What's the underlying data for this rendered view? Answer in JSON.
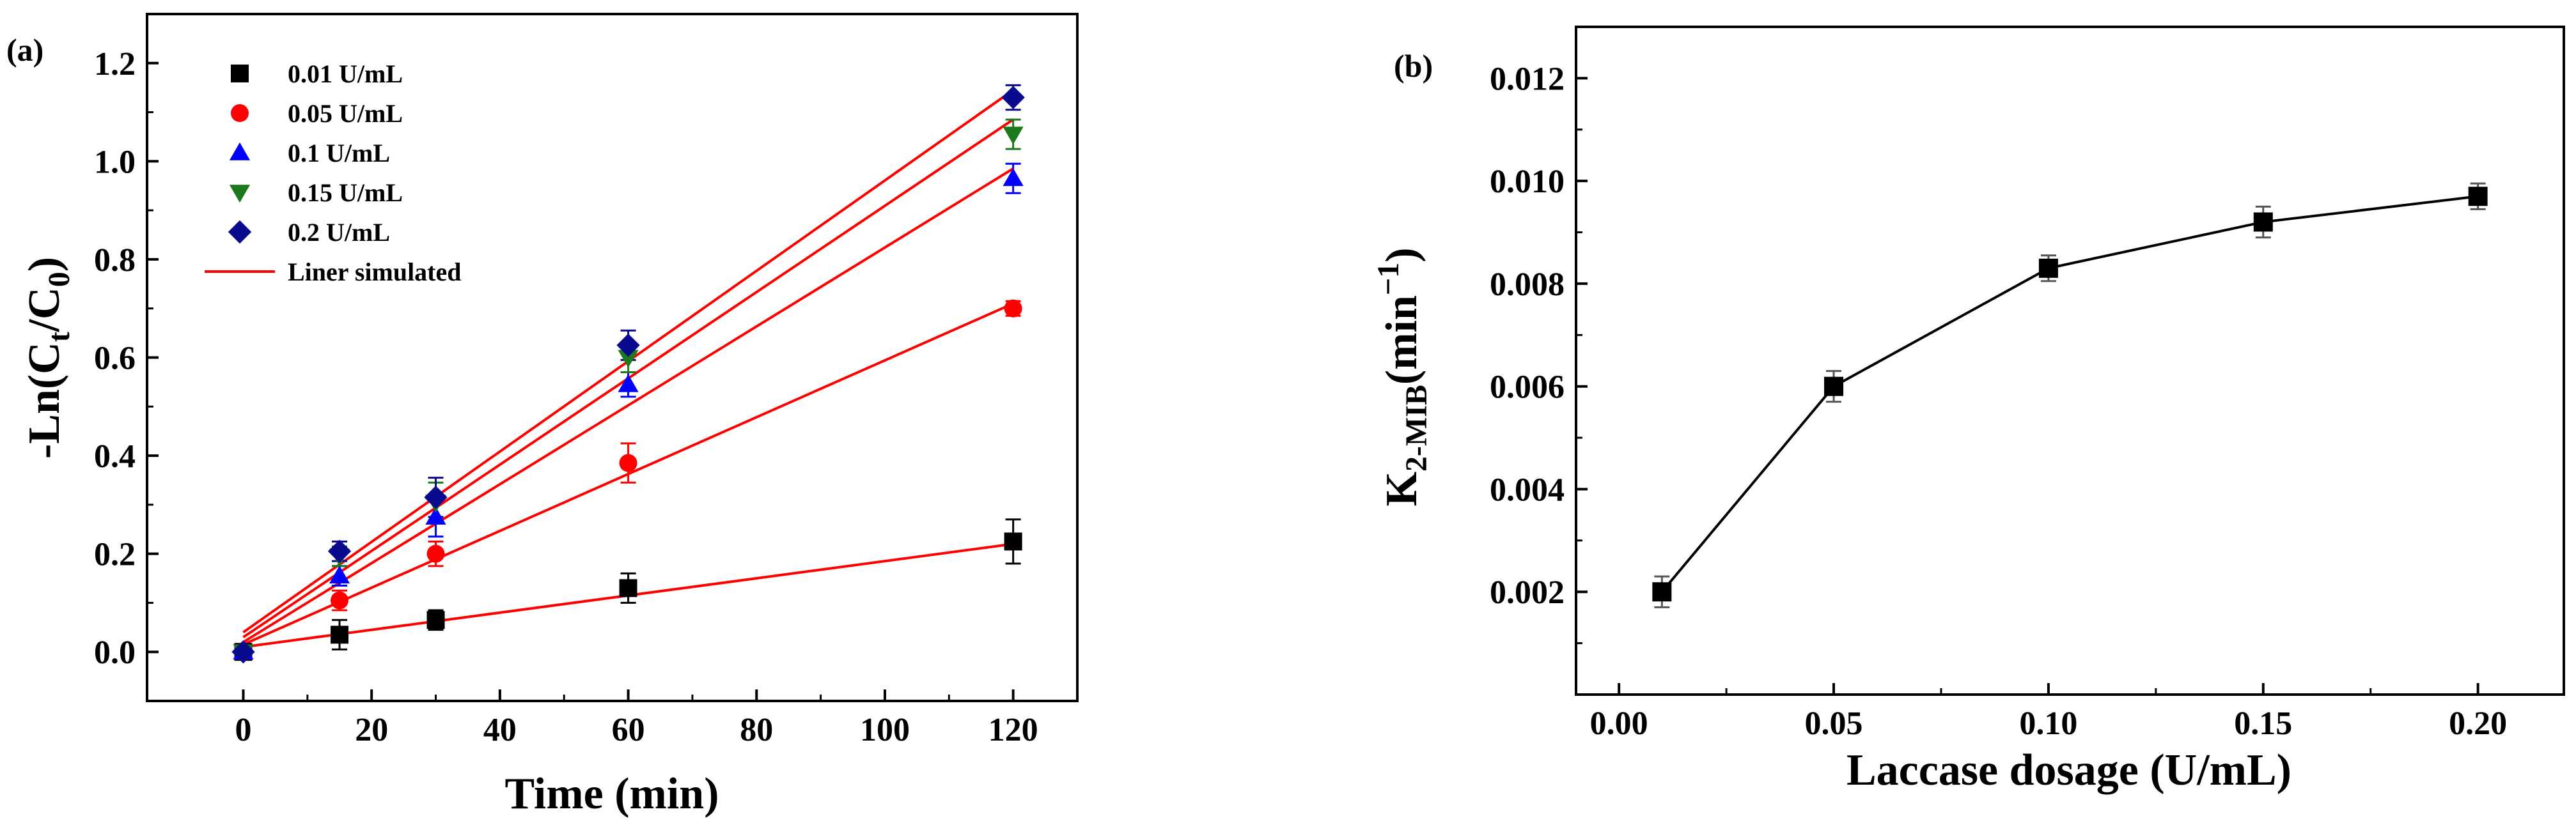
{
  "chart_data": [
    {
      "type": "scatter",
      "panel_label": "(a)",
      "xlabel": "Time (min)",
      "ylabel_parts": [
        "-Ln(C",
        "t",
        "/C",
        "0",
        ")"
      ],
      "xlim": [
        -15,
        130
      ],
      "ylim": [
        -0.1,
        1.3
      ],
      "xticks": [
        0,
        20,
        40,
        60,
        80,
        100,
        120
      ],
      "xtick_labels": [
        "0",
        "20",
        "40",
        "60",
        "80",
        "100",
        "120"
      ],
      "yticks": [
        0.0,
        0.2,
        0.4,
        0.6,
        0.8,
        1.0,
        1.2
      ],
      "ytick_labels": [
        "0.0",
        "0.2",
        "0.4",
        "0.6",
        "0.8",
        "1.0",
        "1.2"
      ],
      "legend_position": "top-left",
      "fit_label": "Liner simulated",
      "fit_color": "#ff0000",
      "x": [
        0,
        15,
        30,
        60,
        120
      ],
      "series": [
        {
          "name": "0.01 U/mL",
          "marker": "square",
          "color": "#000000",
          "values": [
            0.0,
            0.035,
            0.065,
            0.13,
            0.225
          ],
          "errors": [
            0.01,
            0.03,
            0.02,
            0.03,
            0.045
          ],
          "fit": [
            0.01,
            0.22
          ]
        },
        {
          "name": "0.05 U/mL",
          "marker": "circle",
          "color": "#ff0000",
          "values": [
            0.0,
            0.105,
            0.2,
            0.385,
            0.7
          ],
          "errors": [
            0.01,
            0.02,
            0.025,
            0.04,
            0.015
          ],
          "fit": [
            0.015,
            0.71
          ]
        },
        {
          "name": "0.1 U/mL",
          "marker": "triangle-up",
          "color": "#0000ff",
          "values": [
            0.0,
            0.155,
            0.275,
            0.545,
            0.965
          ],
          "errors": [
            0.01,
            0.02,
            0.04,
            0.025,
            0.03
          ],
          "fit": [
            0.02,
            0.985
          ]
        },
        {
          "name": "0.15 U/mL",
          "marker": "triangle-down",
          "color": "#1b7a1b",
          "values": [
            0.0,
            0.195,
            0.305,
            0.6,
            1.055
          ],
          "errors": [
            0.01,
            0.02,
            0.04,
            0.03,
            0.03
          ],
          "fit": [
            0.03,
            1.085
          ]
        },
        {
          "name": "0.2 U/mL",
          "marker": "diamond",
          "color": "#0a0a8f",
          "values": [
            0.0,
            0.205,
            0.315,
            0.625,
            1.13
          ],
          "errors": [
            0.01,
            0.02,
            0.04,
            0.03,
            0.025
          ],
          "fit": [
            0.04,
            1.145
          ]
        }
      ]
    },
    {
      "type": "line",
      "panel_label": "(b)",
      "xlabel": "Laccase dosage (U/mL)",
      "ylabel_parts": [
        "K",
        "2-MIB",
        "(min",
        "−1",
        ")"
      ],
      "xlim": [
        -0.01,
        0.22
      ],
      "ylim": [
        0.0,
        0.013
      ],
      "xticks": [
        0.0,
        0.05,
        0.1,
        0.15,
        0.2
      ],
      "xtick_labels": [
        "0.00",
        "0.05",
        "0.10",
        "0.15",
        "0.20"
      ],
      "yticks": [
        0.002,
        0.004,
        0.006,
        0.008,
        0.01,
        0.012
      ],
      "ytick_labels": [
        "0.002",
        "0.004",
        "0.006",
        "0.008",
        "0.010",
        "0.012"
      ],
      "marker": "square",
      "color": "#000000",
      "x": [
        0.01,
        0.05,
        0.1,
        0.15,
        0.2
      ],
      "values": [
        0.002,
        0.006,
        0.0083,
        0.0092,
        0.0097
      ],
      "errors": [
        0.0003,
        0.0003,
        0.00025,
        0.0003,
        0.00025
      ]
    }
  ]
}
